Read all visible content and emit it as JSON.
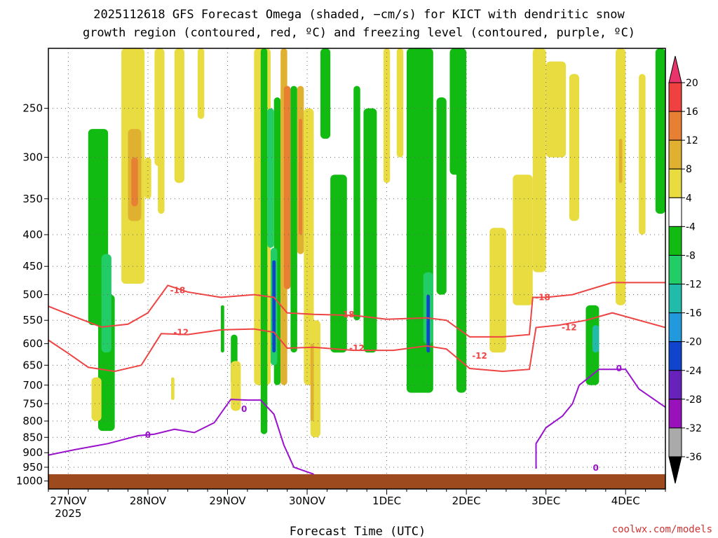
{
  "chart_data": {
    "type": "heatmap",
    "title_line1": "2025112618 GFS Forecast Omega (shaded, −cm/s) for KICT with dendritic snow",
    "title_line2": "growth region (contoured, red, ºC) and freezing level (contoured, purple, ºC)",
    "xlabel": "Forecast Time (UTC)",
    "credit": "coolwx.com/models",
    "x_ticks": [
      {
        "label": "27NOV",
        "sublabel": "2025",
        "hours": 6
      },
      {
        "label": "28NOV",
        "hours": 30
      },
      {
        "label": "29NOV",
        "hours": 54
      },
      {
        "label": "30NOV",
        "hours": 78
      },
      {
        "label": "1DEC",
        "hours": 102
      },
      {
        "label": "2DEC",
        "hours": 126
      },
      {
        "label": "3DEC",
        "hours": 150
      },
      {
        "label": "4DEC",
        "hours": 174
      }
    ],
    "xlim_hours": [
      0,
      186
    ],
    "y_ticks": [
      250,
      300,
      350,
      400,
      450,
      500,
      550,
      600,
      650,
      700,
      750,
      800,
      850,
      900,
      950,
      1000
    ],
    "ylim_hpa": [
      200,
      1030
    ],
    "colorbar": {
      "labels": [
        "20",
        "16",
        "12",
        "8",
        "4",
        "-4",
        "-8",
        "-12",
        "-16",
        "-20",
        "-24",
        "-28",
        "-32",
        "-36"
      ],
      "colors": [
        "#e8336b",
        "#f04040",
        "#e88033",
        "#e0b030",
        "#e8dc40",
        "#ffffff",
        "#11bb11",
        "#22cc66",
        "#22bbaa",
        "#2299dd",
        "#1144cc",
        "#6622bb",
        "#9911bb",
        "#aaaaaa",
        "#000000"
      ]
    },
    "shading_key": {
      "y4": "#e8dc40",
      "y8": "#e0b030",
      "y12": "#e88033",
      "y16": "#f04040",
      "g4": "#11bb11",
      "g8": "#22cc66",
      "g12": "#22bbaa",
      "g16": "#2299dd",
      "g20": "#1144cc",
      "g24": "#6622bb"
    },
    "omega_regions": [
      {
        "x": [
          12,
          18
        ],
        "p": [
          270,
          560
        ],
        "c": "g4"
      },
      {
        "x": [
          15,
          20
        ],
        "p": [
          500,
          830
        ],
        "c": "g4"
      },
      {
        "x": [
          16,
          19
        ],
        "p": [
          430,
          620
        ],
        "c": "g8"
      },
      {
        "x": [
          13,
          16
        ],
        "p": [
          680,
          800
        ],
        "c": "y4"
      },
      {
        "x": [
          22,
          29
        ],
        "p": [
          200,
          480
        ],
        "c": "y4"
      },
      {
        "x": [
          24,
          28
        ],
        "p": [
          270,
          380
        ],
        "c": "y8"
      },
      {
        "x": [
          25,
          27
        ],
        "p": [
          300,
          360
        ],
        "c": "y12"
      },
      {
        "x": [
          29,
          31
        ],
        "p": [
          300,
          350
        ],
        "c": "y4"
      },
      {
        "x": [
          33,
          35
        ],
        "p": [
          300,
          370
        ],
        "c": "y4"
      },
      {
        "x": [
          32,
          35
        ],
        "p": [
          200,
          310
        ],
        "c": "y4"
      },
      {
        "x": [
          38,
          41
        ],
        "p": [
          200,
          330
        ],
        "c": "y4"
      },
      {
        "x": [
          37,
          38
        ],
        "p": [
          680,
          740
        ],
        "c": "y4"
      },
      {
        "x": [
          45,
          47
        ],
        "p": [
          200,
          260
        ],
        "c": "y4"
      },
      {
        "x": [
          52,
          53
        ],
        "p": [
          520,
          620
        ],
        "c": "g4"
      },
      {
        "x": [
          55,
          57
        ],
        "p": [
          580,
          700
        ],
        "c": "g4"
      },
      {
        "x": [
          55,
          58
        ],
        "p": [
          640,
          770
        ],
        "c": "y4"
      },
      {
        "x": [
          62,
          67
        ],
        "p": [
          200,
          700
        ],
        "c": "y4"
      },
      {
        "x": [
          64,
          66
        ],
        "p": [
          200,
          840
        ],
        "c": "g4"
      },
      {
        "x": [
          66,
          68
        ],
        "p": [
          250,
          420
        ],
        "c": "g8"
      },
      {
        "x": [
          68,
          70
        ],
        "p": [
          240,
          700
        ],
        "c": "g4"
      },
      {
        "x": [
          67,
          69
        ],
        "p": [
          420,
          650
        ],
        "c": "g8"
      },
      {
        "x": [
          67.5,
          68.5
        ],
        "p": [
          440,
          620
        ],
        "c": "g20"
      },
      {
        "x": [
          70,
          72
        ],
        "p": [
          200,
          700
        ],
        "c": "y8"
      },
      {
        "x": [
          71,
          73
        ],
        "p": [
          230,
          490
        ],
        "c": "y12"
      },
      {
        "x": [
          73,
          75
        ],
        "p": [
          230,
          620
        ],
        "c": "g4"
      },
      {
        "x": [
          75,
          77
        ],
        "p": [
          230,
          430
        ],
        "c": "y8"
      },
      {
        "x": [
          75.5,
          76.5
        ],
        "p": [
          260,
          400
        ],
        "c": "y12"
      },
      {
        "x": [
          77,
          80
        ],
        "p": [
          250,
          700
        ],
        "c": "y4"
      },
      {
        "x": [
          79,
          82
        ],
        "p": [
          550,
          850
        ],
        "c": "y4"
      },
      {
        "x": [
          79,
          80
        ],
        "p": [
          600,
          800
        ],
        "c": "y8"
      },
      {
        "x": [
          82,
          85
        ],
        "p": [
          200,
          280
        ],
        "c": "g4"
      },
      {
        "x": [
          85,
          90
        ],
        "p": [
          320,
          620
        ],
        "c": "g4"
      },
      {
        "x": [
          92,
          94
        ],
        "p": [
          230,
          550
        ],
        "c": "g4"
      },
      {
        "x": [
          95,
          99
        ],
        "p": [
          250,
          620
        ],
        "c": "g4"
      },
      {
        "x": [
          101,
          103
        ],
        "p": [
          200,
          330
        ],
        "c": "y4"
      },
      {
        "x": [
          105,
          107
        ],
        "p": [
          200,
          300
        ],
        "c": "y4"
      },
      {
        "x": [
          108,
          116
        ],
        "p": [
          200,
          720
        ],
        "c": "g4"
      },
      {
        "x": [
          113,
          116
        ],
        "p": [
          460,
          600
        ],
        "c": "g8"
      },
      {
        "x": [
          114,
          115
        ],
        "p": [
          500,
          620
        ],
        "c": "g20"
      },
      {
        "x": [
          117,
          120
        ],
        "p": [
          240,
          500
        ],
        "c": "g4"
      },
      {
        "x": [
          121,
          126
        ],
        "p": [
          200,
          320
        ],
        "c": "g4"
      },
      {
        "x": [
          123,
          126
        ],
        "p": [
          300,
          720
        ],
        "c": "g4"
      },
      {
        "x": [
          133,
          138
        ],
        "p": [
          390,
          620
        ],
        "c": "y4"
      },
      {
        "x": [
          140,
          146
        ],
        "p": [
          320,
          520
        ],
        "c": "y4"
      },
      {
        "x": [
          146,
          150
        ],
        "p": [
          200,
          460
        ],
        "c": "y4"
      },
      {
        "x": [
          150,
          156
        ],
        "p": [
          210,
          300
        ],
        "c": "y4"
      },
      {
        "x": [
          157,
          160
        ],
        "p": [
          220,
          380
        ],
        "c": "y4"
      },
      {
        "x": [
          162,
          166
        ],
        "p": [
          520,
          700
        ],
        "c": "g4"
      },
      {
        "x": [
          164,
          166
        ],
        "p": [
          560,
          620
        ],
        "c": "g12"
      },
      {
        "x": [
          171,
          174
        ],
        "p": [
          200,
          520
        ],
        "c": "y4"
      },
      {
        "x": [
          172,
          173
        ],
        "p": [
          280,
          330
        ],
        "c": "y8"
      },
      {
        "x": [
          178,
          180
        ],
        "p": [
          220,
          400
        ],
        "c": "y4"
      },
      {
        "x": [
          183,
          186
        ],
        "p": [
          200,
          370
        ],
        "c": "g4"
      }
    ],
    "dgz_contours": [
      {
        "label": "-18",
        "label_at": [
          [
            39,
            492
          ],
          [
            90,
            538
          ],
          [
            149,
            505
          ]
        ],
        "points": [
          [
            0,
            522
          ],
          [
            8,
            543
          ],
          [
            16,
            564
          ],
          [
            24,
            558
          ],
          [
            30,
            535
          ],
          [
            36,
            483
          ],
          [
            42,
            495
          ],
          [
            52,
            505
          ],
          [
            62,
            500
          ],
          [
            68,
            505
          ],
          [
            72,
            535
          ],
          [
            80,
            538
          ],
          [
            92,
            540
          ],
          [
            102,
            548
          ],
          [
            114,
            545
          ],
          [
            120,
            550
          ],
          [
            127,
            585
          ],
          [
            137,
            585
          ],
          [
            145,
            580
          ],
          [
            146,
            505
          ],
          [
            150,
            505
          ],
          [
            158,
            500
          ],
          [
            170,
            478
          ],
          [
            186,
            478
          ]
        ]
      },
      {
        "label": "-12",
        "label_at": [
          [
            40,
            575
          ],
          [
            93,
            610
          ],
          [
            157,
            565
          ],
          [
            130,
            628
          ]
        ],
        "points": [
          [
            0,
            592
          ],
          [
            6,
            622
          ],
          [
            12,
            655
          ],
          [
            20,
            665
          ],
          [
            28,
            650
          ],
          [
            34,
            578
          ],
          [
            42,
            580
          ],
          [
            52,
            570
          ],
          [
            62,
            568
          ],
          [
            68,
            575
          ],
          [
            72,
            610
          ],
          [
            80,
            608
          ],
          [
            92,
            615
          ],
          [
            104,
            615
          ],
          [
            114,
            605
          ],
          [
            120,
            612
          ],
          [
            127,
            658
          ],
          [
            137,
            665
          ],
          [
            145,
            660
          ],
          [
            147,
            565
          ],
          [
            154,
            560
          ],
          [
            162,
            550
          ],
          [
            170,
            535
          ],
          [
            186,
            565
          ]
        ]
      }
    ],
    "freezing_contours": [
      {
        "label": "0",
        "label_at": [
          [
            30,
            843
          ],
          [
            59,
            765
          ]
        ],
        "points": [
          [
            0,
            908
          ],
          [
            8,
            890
          ],
          [
            18,
            870
          ],
          [
            27,
            845
          ],
          [
            32,
            840
          ],
          [
            38,
            825
          ],
          [
            44,
            835
          ],
          [
            50,
            805
          ],
          [
            55,
            738
          ],
          [
            60,
            740
          ],
          [
            64,
            740
          ],
          [
            68,
            780
          ],
          [
            71,
            875
          ],
          [
            74,
            950
          ],
          [
            80,
            975
          ]
        ]
      },
      {
        "label": "0",
        "label_at": [
          [
            172,
            658
          ],
          [
            165,
            952
          ]
        ],
        "points": [
          [
            147,
            955
          ],
          [
            147,
            870
          ],
          [
            150,
            820
          ],
          [
            155,
            785
          ],
          [
            158,
            750
          ],
          [
            160,
            700
          ],
          [
            166,
            660
          ],
          [
            174,
            660
          ],
          [
            178,
            710
          ],
          [
            186,
            760
          ]
        ]
      }
    ],
    "surface_top_hpa": 975
  }
}
